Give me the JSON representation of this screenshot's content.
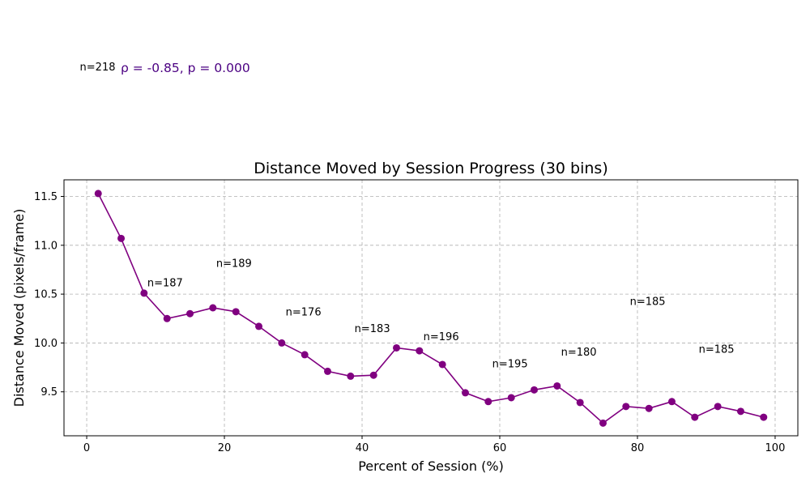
{
  "chart_data": {
    "type": "line",
    "title": "Distance Moved by Session Progress (30 bins)",
    "xlabel": "Percent of Session (%)",
    "ylabel": "Distance Moved (pixels/frame)",
    "xlim": [
      -3.3,
      103.3
    ],
    "ylim": [
      9.05,
      11.67
    ],
    "xticks": [
      0,
      20,
      40,
      60,
      80,
      100
    ],
    "yticks": [
      9.5,
      10.0,
      10.5,
      11.0,
      11.5
    ],
    "xtick_labels": [
      "0",
      "20",
      "40",
      "60",
      "80",
      "100"
    ],
    "ytick_labels": [
      "9.5",
      "10.0",
      "10.5",
      "11.0",
      "11.5"
    ],
    "grid": true,
    "color": "#800080",
    "series": [
      {
        "x": [
          1.67,
          5.0,
          8.33,
          11.67,
          15.0,
          18.33,
          21.67,
          25.0,
          28.33,
          31.67,
          35.0,
          38.33,
          41.67,
          45.0,
          48.33,
          51.67,
          55.0,
          58.33,
          61.67,
          65.0,
          68.33,
          71.67,
          75.0,
          78.33,
          81.67,
          85.0,
          88.33,
          91.67,
          95.0,
          98.33
        ],
        "y": [
          11.53,
          11.07,
          10.51,
          10.25,
          10.3,
          10.36,
          10.32,
          10.17,
          10.0,
          9.88,
          9.71,
          9.66,
          9.67,
          9.95,
          9.92,
          9.78,
          9.49,
          9.4,
          9.44,
          9.52,
          9.56,
          9.39,
          9.18,
          9.35,
          9.33,
          9.4,
          9.24,
          9.35,
          9.3,
          9.24
        ]
      }
    ],
    "annotations": [
      {
        "text": "n=218",
        "x": -1.0,
        "y": 12.79
      },
      {
        "text": "n=187",
        "x": 8.8,
        "y": 10.58
      },
      {
        "text": "n=189",
        "x": 18.8,
        "y": 10.78
      },
      {
        "text": "n=176",
        "x": 28.9,
        "y": 10.28
      },
      {
        "text": "n=183",
        "x": 38.9,
        "y": 10.11
      },
      {
        "text": "n=196",
        "x": 48.9,
        "y": 10.03
      },
      {
        "text": "n=195",
        "x": 58.9,
        "y": 9.75
      },
      {
        "text": "n=180",
        "x": 68.9,
        "y": 9.87
      },
      {
        "text": "n=185",
        "x": 78.9,
        "y": 10.39
      },
      {
        "text": "n=185",
        "x": 88.9,
        "y": 9.9
      }
    ],
    "stat_text": "ρ = -0.85, p = 0.000"
  }
}
